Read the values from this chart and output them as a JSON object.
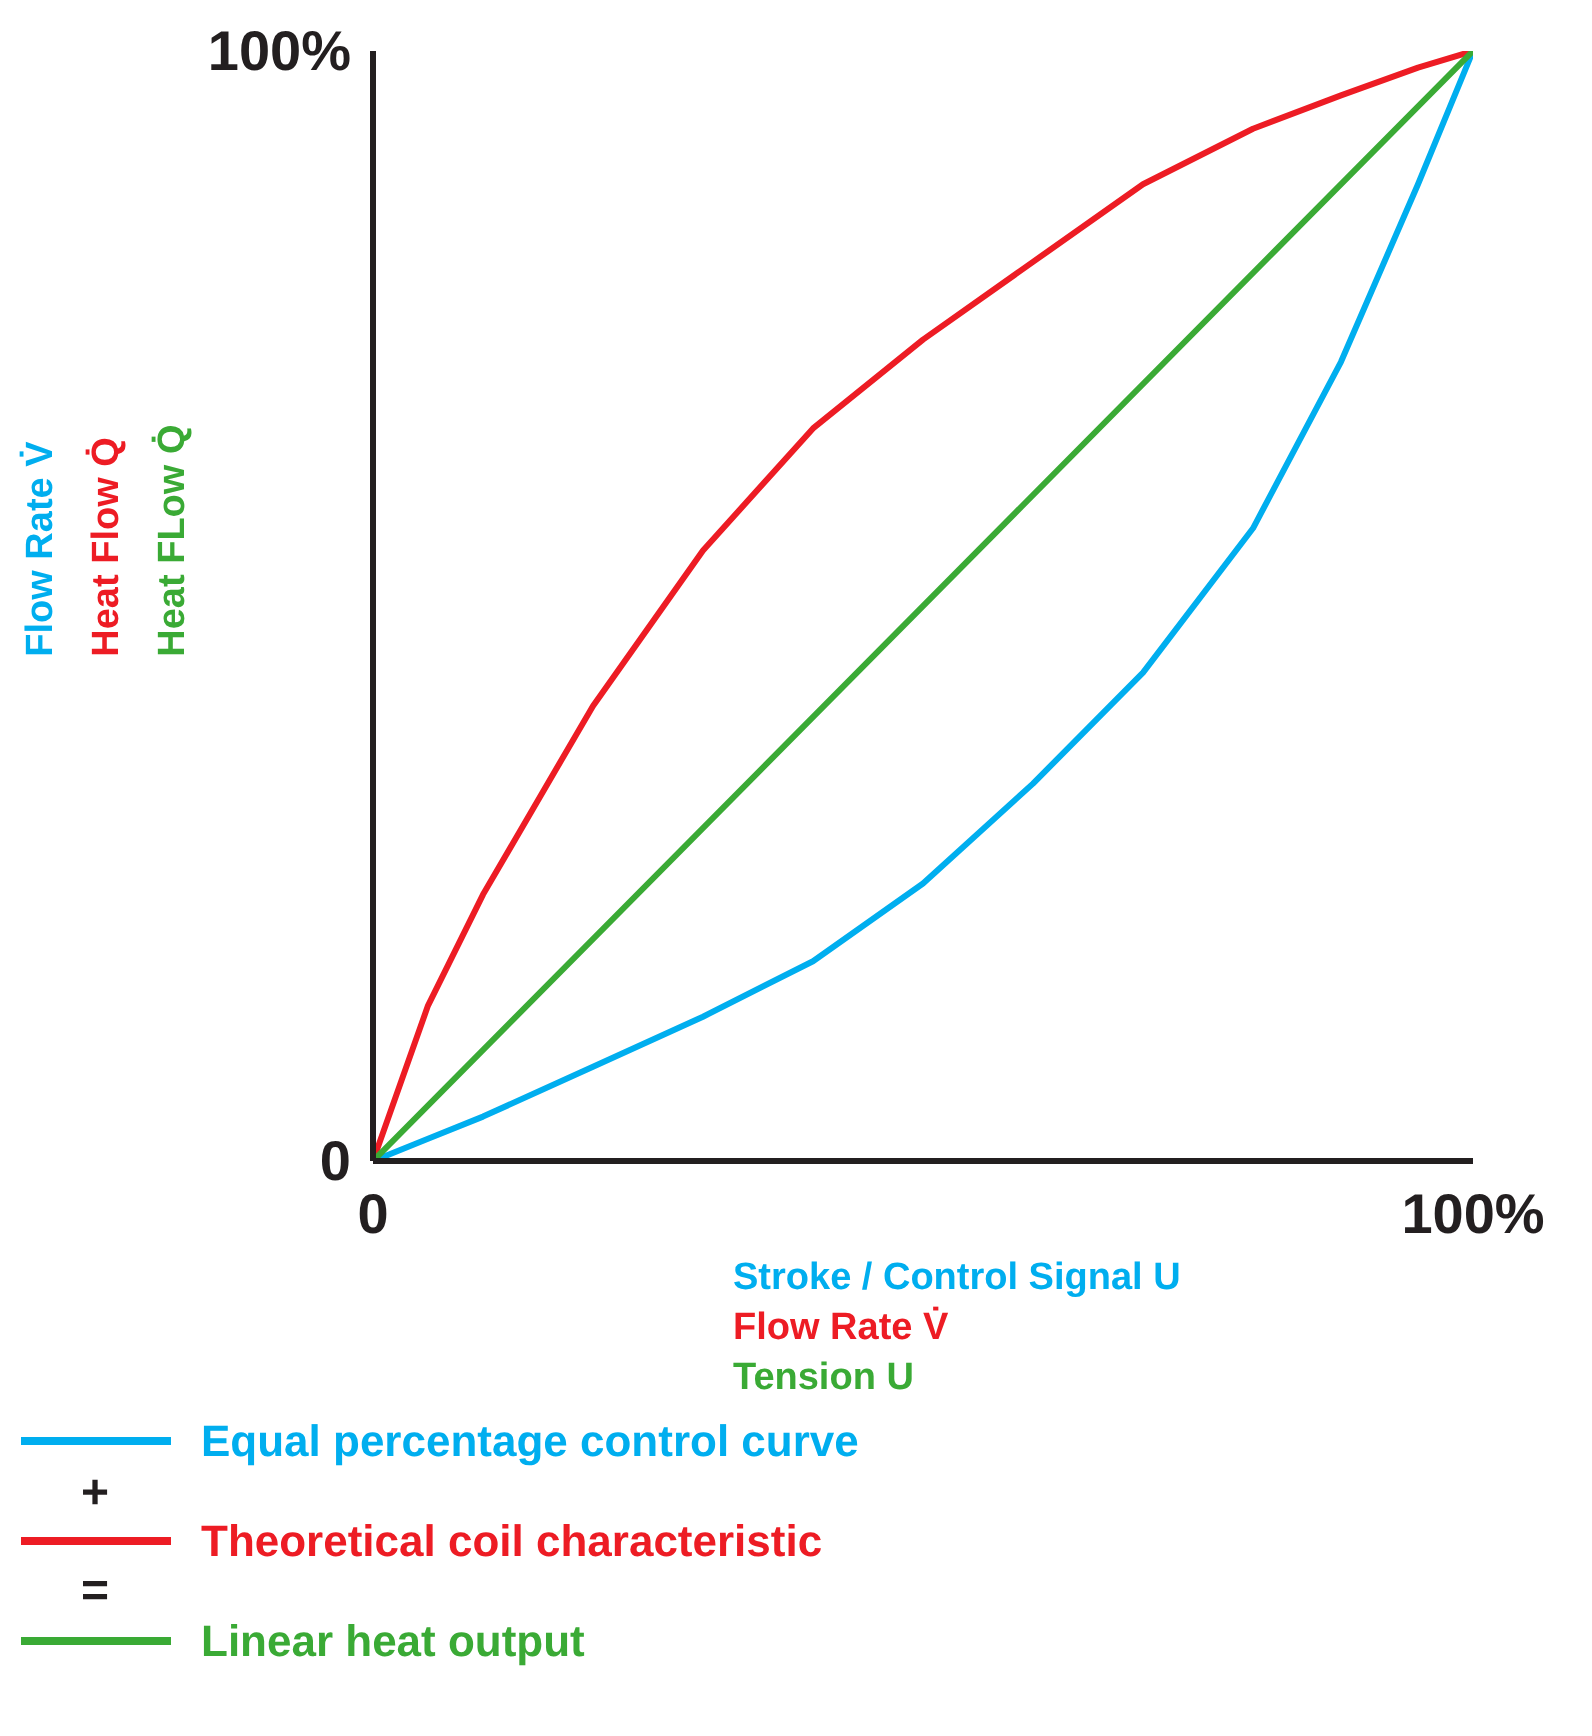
{
  "chart_data": {
    "type": "line",
    "xlabel": "Stroke / Control Signal U\nFlow Rate V̇\nTension U",
    "ylabel": "Flow Rate V̇\nHeat Flow Q̇\nHeat FLow Q̇",
    "x": [
      0,
      5,
      10,
      20,
      30,
      40,
      50,
      60,
      70,
      80,
      88,
      95,
      100
    ],
    "series": [
      {
        "name": "Equal percentage control curve",
        "color": "#00aeef",
        "values": [
          0,
          2,
          4,
          8.5,
          13,
          18,
          25,
          34,
          44,
          57,
          72,
          88,
          100
        ]
      },
      {
        "name": "Theoretical coil characteristic",
        "color": "#ed1c24",
        "values": [
          0,
          14,
          24,
          41,
          55,
          66,
          74,
          81,
          88,
          93,
          96,
          98.5,
          100
        ]
      },
      {
        "name": "Linear heat output",
        "color": "#3aaa35",
        "x": [
          0,
          100
        ],
        "values": [
          0,
          100
        ]
      }
    ],
    "xlim": [
      0,
      100
    ],
    "ylim": [
      0,
      100
    ],
    "xticks": [
      0,
      {
        "value": 100,
        "label": "100%"
      }
    ],
    "yticks": [
      0,
      {
        "value": 100,
        "label": "100%"
      }
    ],
    "annotations": [
      "+",
      "="
    ],
    "legend": "bottom",
    "line_style": "solid"
  }
}
